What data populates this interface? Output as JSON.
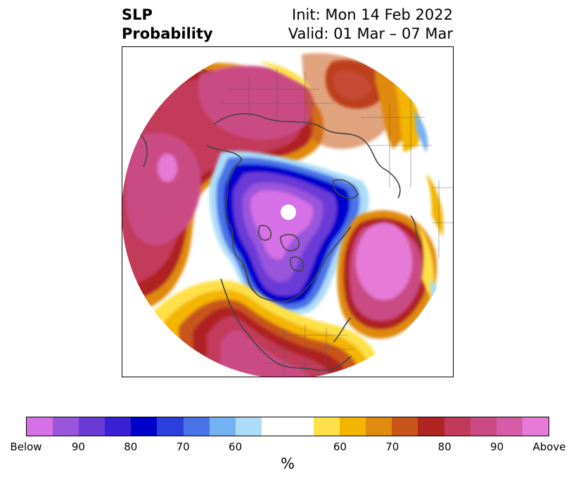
{
  "header": {
    "title_line1": "SLP",
    "title_line2": "Probability",
    "init": "Init: Mon 14 Feb 2022",
    "valid": "Valid: 01 Mar – 07 Mar"
  },
  "colorbar": {
    "colors": [
      "#d670e6",
      "#9a55dd",
      "#6a3ad6",
      "#3a1fd4",
      "#0000cc",
      "#2a3fdc",
      "#4a73e8",
      "#74b2f2",
      "#acdcf8",
      "#ffffff",
      "#ffffff",
      "#fee14a",
      "#f4b500",
      "#e08a0e",
      "#c8561a",
      "#b02424",
      "#c23a5a",
      "#ca4b84",
      "#d65ca8",
      "#e67ad6"
    ],
    "tick_labels": [
      "Below",
      "90",
      "80",
      "70",
      "60",
      "",
      "60",
      "70",
      "80",
      "90",
      "Above"
    ],
    "unit_label": "%"
  },
  "map": {
    "projection": "north-polar-stereographic",
    "below_colors": [
      "#d670e6",
      "#6a3ad6",
      "#0000cc",
      "#4a73e8",
      "#acdcf8"
    ],
    "above_colors": [
      "#fee14a",
      "#f4b500",
      "#e08a0e",
      "#c8561a",
      "#b02424",
      "#c23a5a",
      "#ca4b84",
      "#e67ad6"
    ],
    "coastline_color": "#444444"
  }
}
